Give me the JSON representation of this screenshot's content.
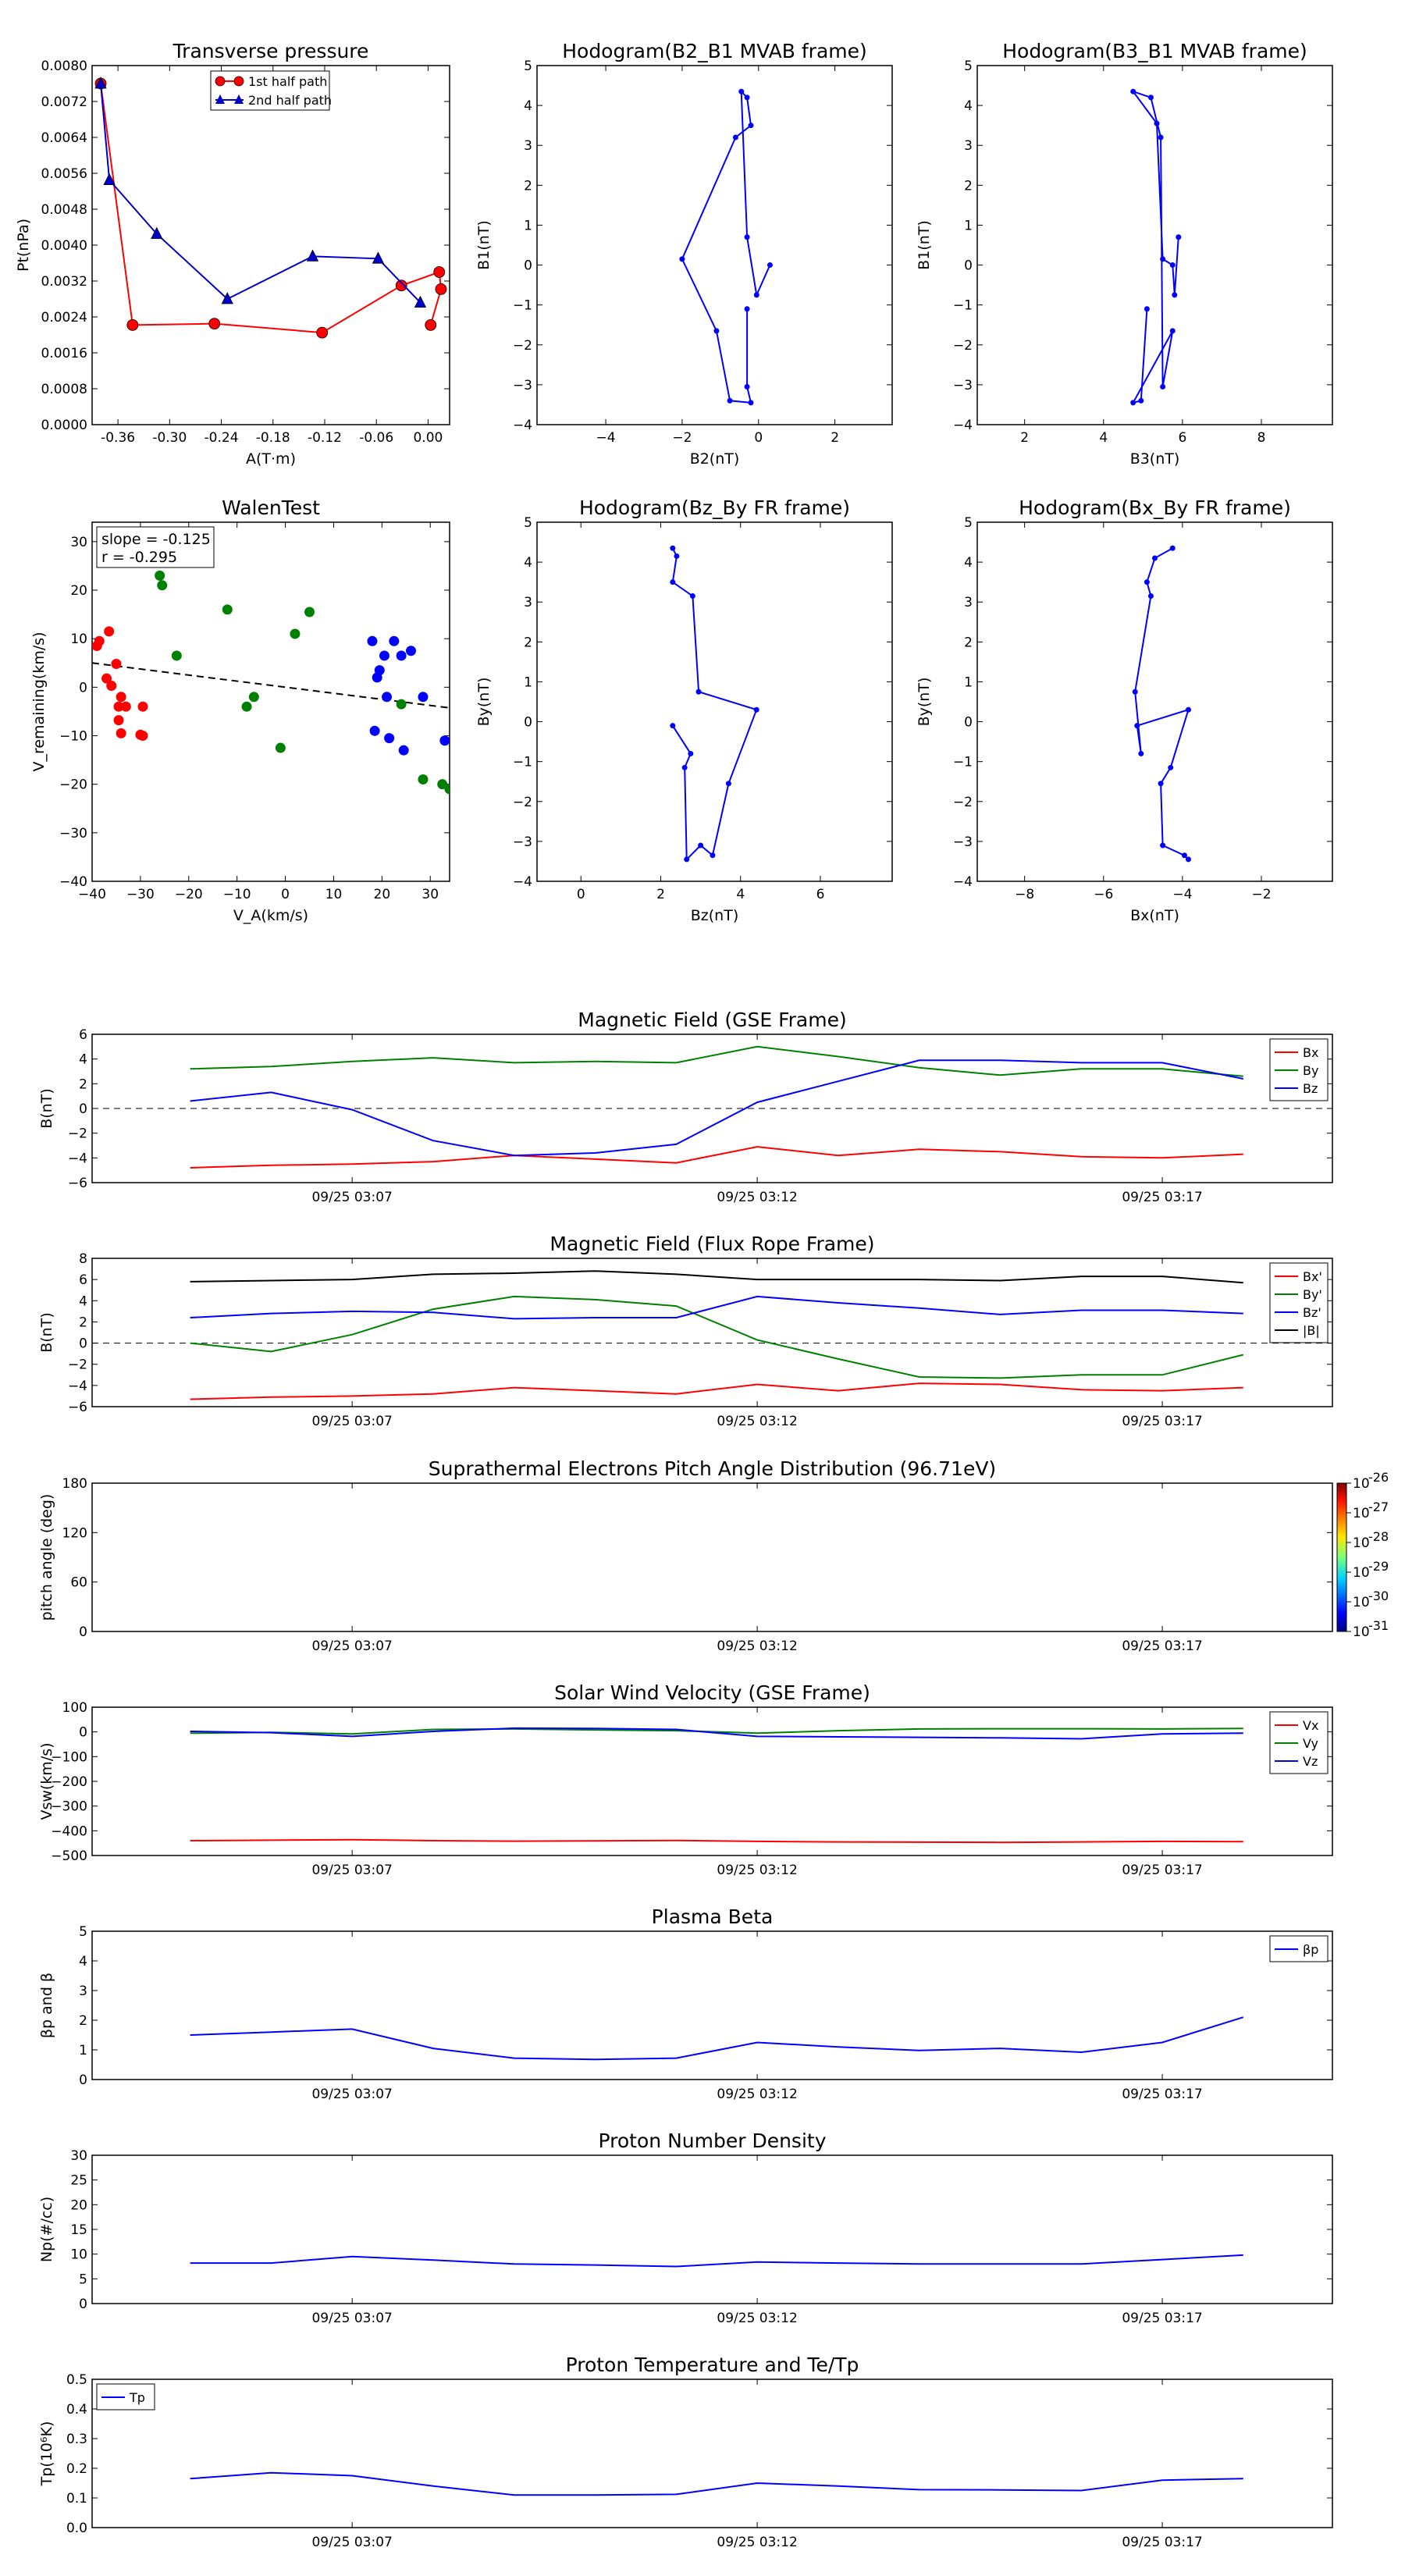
{
  "chart_data": [
    {
      "type": "line",
      "title": "Transverse pressure",
      "xlabel": "A(T·m)",
      "ylabel": "Pt(nPa)",
      "xlim": [
        -0.39,
        0.025
      ],
      "ylim": [
        0,
        0.008
      ],
      "xticks": [
        "-0.36",
        "-0.30",
        "-0.24",
        "-0.18",
        "-0.12",
        "-0.06",
        "0.00"
      ],
      "yticks": [
        "0.0000",
        "0.0008",
        "0.0016",
        "0.0024",
        "0.0032",
        "0.0040",
        "0.0048",
        "0.0056",
        "0.0064",
        "0.0072",
        "0.0080"
      ],
      "legend_position": "top-center",
      "series": [
        {
          "name": "1st half path",
          "color": "#ff0000",
          "marker": "circle",
          "x": [
            -0.38,
            -0.343,
            -0.248,
            -0.123,
            -0.031,
            0.013,
            0.015,
            0.003
          ],
          "y": [
            0.0076,
            0.00222,
            0.00225,
            0.00205,
            0.0031,
            0.0034,
            0.00302,
            0.00222
          ]
        },
        {
          "name": "2nd half path",
          "color": "#0000cc",
          "marker": "triangle",
          "x": [
            -0.38,
            -0.37,
            -0.315,
            -0.233,
            -0.134,
            -0.058,
            -0.009
          ],
          "y": [
            0.0076,
            0.00545,
            0.00425,
            0.0028,
            0.00375,
            0.0037,
            0.00272
          ]
        }
      ]
    },
    {
      "type": "line",
      "title": "Hodogram(B2_B1 MVAB frame)",
      "xlabel": "B2(nT)",
      "ylabel": "B1(nT)",
      "xlim": [
        -5.8,
        3.5
      ],
      "ylim": [
        -4,
        5
      ],
      "xticks": [
        "−4",
        "−2",
        "0",
        "2"
      ],
      "yticks": [
        "−4",
        "−3",
        "−2",
        "−1",
        "0",
        "1",
        "2",
        "3",
        "4",
        "5"
      ],
      "series": [
        {
          "color": "#0000ff",
          "marker": "dot",
          "x": [
            0.3,
            -0.05,
            -0.3,
            -0.45,
            -0.3,
            -0.2,
            -0.6,
            -2.0,
            -1.1,
            -0.75,
            -0.2,
            -0.3,
            -0.3
          ],
          "y": [
            0.0,
            -0.75,
            0.7,
            4.35,
            4.2,
            3.5,
            3.2,
            0.15,
            -1.65,
            -3.4,
            -3.45,
            -3.05,
            -1.1
          ]
        }
      ]
    },
    {
      "type": "line",
      "title": "Hodogram(B3_B1 MVAB frame)",
      "xlabel": "B3(nT)",
      "ylabel": "B1(nT)",
      "xlim": [
        0.8,
        9.8
      ],
      "ylim": [
        -4,
        5
      ],
      "xticks": [
        "2",
        "4",
        "6",
        "8"
      ],
      "yticks": [
        "−4",
        "−3",
        "−2",
        "−1",
        "0",
        "1",
        "2",
        "3",
        "4",
        "5"
      ],
      "series": [
        {
          "color": "#0000ff",
          "marker": "dot",
          "x": [
            5.9,
            5.8,
            5.75,
            5.5,
            5.35,
            4.75,
            5.2,
            5.45,
            5.5,
            5.75,
            4.75,
            4.95,
            5.1
          ],
          "y": [
            0.7,
            -0.75,
            0.0,
            0.15,
            3.55,
            4.35,
            4.2,
            3.2,
            -3.05,
            -1.65,
            -3.45,
            -3.4,
            -1.1
          ]
        }
      ]
    },
    {
      "type": "scatter",
      "title": "WalenTest",
      "xlabel": "V_A(km/s)",
      "ylabel": "V_remaining(km/s)",
      "xlim": [
        -40,
        34
      ],
      "ylim": [
        -40,
        34
      ],
      "xticks": [
        "−40",
        "−30",
        "−20",
        "−10",
        "0",
        "10",
        "20",
        "30"
      ],
      "yticks": [
        "−40",
        "−30",
        "−20",
        "−10",
        "0",
        "10",
        "20",
        "30"
      ],
      "annotation": [
        "slope = -0.125",
        "r = -0.295"
      ],
      "fit_line": {
        "x": [
          -40,
          34
        ],
        "y": [
          5.0,
          -4.25
        ]
      },
      "series": [
        {
          "color": "#ff0000",
          "x": [
            -39,
            -38.5,
            -37,
            -36.5,
            -36,
            -35,
            -34.5,
            -34,
            -34.5,
            -34,
            -33,
            -30,
            -29.5,
            -29.5
          ],
          "y": [
            8.5,
            9.5,
            1.8,
            11.5,
            0.3,
            4.8,
            -6.8,
            -9.5,
            -4,
            -2,
            -4,
            -9.8,
            -10,
            -4
          ]
        },
        {
          "color": "#008000",
          "x": [
            -26,
            -25.5,
            -22.5,
            -12,
            -8,
            -6.5,
            -1,
            2,
            5,
            24,
            28.5,
            32.5,
            34
          ],
          "y": [
            23,
            21,
            6.5,
            16,
            -4,
            -2,
            -12.5,
            11,
            15.5,
            -3.5,
            -19,
            -20,
            -21
          ]
        },
        {
          "color": "#0000ff",
          "x": [
            18,
            18.5,
            19,
            19.5,
            20.5,
            21,
            21.5,
            22.5,
            24,
            24.5,
            26,
            28.5,
            33
          ],
          "y": [
            9.5,
            -9,
            2,
            3.5,
            6.5,
            -2,
            -10.5,
            9.5,
            6.5,
            -13,
            7.5,
            -2,
            -11
          ]
        }
      ]
    },
    {
      "type": "line",
      "title": "Hodogram(Bz_By FR frame)",
      "xlabel": "Bz(nT)",
      "ylabel": "By(nT)",
      "xlim": [
        -1.1,
        7.8
      ],
      "ylim": [
        -4,
        5
      ],
      "xticks": [
        "0",
        "2",
        "4",
        "6"
      ],
      "yticks": [
        "−4",
        "−3",
        "−2",
        "−1",
        "0",
        "1",
        "2",
        "3",
        "4",
        "5"
      ],
      "series": [
        {
          "color": "#0000ff",
          "marker": "dot",
          "x": [
            2.3,
            2.4,
            2.3,
            2.8,
            2.95,
            4.4,
            3.7,
            3.3,
            3.0,
            2.65,
            2.6,
            2.75,
            2.3
          ],
          "y": [
            4.35,
            4.15,
            3.5,
            3.15,
            0.75,
            0.3,
            -1.55,
            -3.35,
            -3.1,
            -3.45,
            -1.15,
            -0.8,
            -0.1
          ]
        }
      ]
    },
    {
      "type": "line",
      "title": "Hodogram(Bx_By FR frame)",
      "xlabel": "Bx(nT)",
      "ylabel": "By(nT)",
      "xlim": [
        -9.2,
        -0.2
      ],
      "ylim": [
        -4,
        5
      ],
      "xticks": [
        "−8",
        "−6",
        "−4",
        "−2"
      ],
      "yticks": [
        "−4",
        "−3",
        "−2",
        "−1",
        "0",
        "1",
        "2",
        "3",
        "4",
        "5"
      ],
      "series": [
        {
          "color": "#0000ff",
          "marker": "dot",
          "x": [
            -4.25,
            -4.7,
            -4.9,
            -4.8,
            -5.2,
            -5.05,
            -5.15,
            -3.85,
            -4.3,
            -4.55,
            -4.5,
            -3.95,
            -3.85
          ],
          "y": [
            4.35,
            4.1,
            3.5,
            3.15,
            0.75,
            -0.8,
            -0.1,
            0.3,
            -1.15,
            -1.55,
            -3.1,
            -3.35,
            -3.45
          ]
        }
      ]
    },
    {
      "type": "line",
      "title": "Magnetic Field (GSE Frame)",
      "ylabel": "B(nT)",
      "ylim": [
        -6,
        6
      ],
      "yticks": [
        "−6",
        "−4",
        "−2",
        "0",
        "2",
        "4",
        "6"
      ],
      "xticks": [
        "09/25 03:07",
        "09/25 03:12",
        "09/25 03:17"
      ],
      "hline": 0,
      "x": [
        0,
        2,
        4,
        6,
        8,
        10,
        12,
        14,
        16,
        18,
        20,
        22,
        24,
        26
      ],
      "series": [
        {
          "name": "Bx",
          "color": "#ff0000",
          "values": [
            -4.8,
            -4.6,
            -4.5,
            -4.3,
            -3.8,
            -4.1,
            -4.4,
            -3.1,
            -3.8,
            -3.3,
            -3.5,
            -3.9,
            -4.0,
            -3.7
          ]
        },
        {
          "name": "By",
          "color": "#008000",
          "values": [
            3.2,
            3.4,
            3.8,
            4.1,
            3.7,
            3.8,
            3.7,
            5.0,
            4.2,
            3.3,
            2.7,
            3.2,
            3.2,
            2.6
          ]
        },
        {
          "name": "Bz",
          "color": "#0000ff",
          "values": [
            0.6,
            1.3,
            -0.1,
            -2.6,
            -3.8,
            -3.6,
            -2.9,
            0.5,
            2.2,
            3.9,
            3.9,
            3.7,
            3.7,
            2.4
          ]
        }
      ]
    },
    {
      "type": "line",
      "title": "Magnetic Field (Flux Rope Frame)",
      "ylabel": "B(nT)",
      "ylim": [
        -6,
        8
      ],
      "yticks": [
        "−6",
        "−4",
        "−2",
        "0",
        "2",
        "4",
        "6",
        "8"
      ],
      "xticks": [
        "09/25 03:07",
        "09/25 03:12",
        "09/25 03:17"
      ],
      "hline": 0,
      "x": [
        0,
        2,
        4,
        6,
        8,
        10,
        12,
        14,
        16,
        18,
        20,
        22,
        24,
        26
      ],
      "series": [
        {
          "name": "Bx'",
          "color": "#ff0000",
          "values": [
            -5.3,
            -5.1,
            -5.0,
            -4.8,
            -4.2,
            -4.5,
            -4.8,
            -3.9,
            -4.5,
            -3.8,
            -3.9,
            -4.4,
            -4.5,
            -4.2
          ]
        },
        {
          "name": "By'",
          "color": "#008000",
          "values": [
            0.0,
            -0.8,
            0.8,
            3.2,
            4.4,
            4.1,
            3.5,
            0.3,
            -1.5,
            -3.2,
            -3.3,
            -3.0,
            -3.0,
            -1.1
          ]
        },
        {
          "name": "Bz'",
          "color": "#0000ff",
          "values": [
            2.4,
            2.8,
            3.0,
            2.9,
            2.3,
            2.4,
            2.4,
            4.4,
            3.8,
            3.3,
            2.7,
            3.1,
            3.1,
            2.8
          ]
        },
        {
          "name": "|B|",
          "color": "#000000",
          "values": [
            5.8,
            5.9,
            6.0,
            6.5,
            6.6,
            6.8,
            6.5,
            6.0,
            6.0,
            6.0,
            5.9,
            6.3,
            6.3,
            5.7
          ]
        }
      ]
    },
    {
      "type": "heatmap",
      "title": "Suprathermal Electrons Pitch Angle Distribution (96.71eV)",
      "ylabel": "pitch angle (deg)",
      "ylim": [
        0,
        180
      ],
      "yticks": [
        "0",
        "60",
        "120",
        "180"
      ],
      "xticks": [
        "09/25 03:07",
        "09/25 03:12",
        "09/25 03:17"
      ],
      "colorbar_ticks": [
        "-31",
        "-30",
        "-29",
        "-28",
        "-27",
        "-26"
      ]
    },
    {
      "type": "line",
      "title": "Solar Wind Velocity (GSE Frame)",
      "ylabel": "Vsw(km/s)",
      "ylim": [
        -500,
        100
      ],
      "yticks": [
        "−500",
        "−400",
        "−300",
        "−200",
        "−100",
        "0",
        "100"
      ],
      "xticks": [
        "09/25 03:07",
        "09/25 03:12",
        "09/25 03:17"
      ],
      "x": [
        0,
        2,
        4,
        6,
        8,
        10,
        12,
        14,
        16,
        18,
        20,
        22,
        24,
        26
      ],
      "series": [
        {
          "name": "Vx",
          "color": "#ff0000",
          "values": [
            -440,
            -438,
            -436,
            -440,
            -442,
            -441,
            -439,
            -443,
            -445,
            -446,
            -447,
            -445,
            -443,
            -444
          ]
        },
        {
          "name": "Vy",
          "color": "#008000",
          "values": [
            -5,
            -2,
            -8,
            10,
            12,
            8,
            5,
            -5,
            5,
            12,
            13,
            13,
            12,
            14
          ]
        },
        {
          "name": "Vz",
          "color": "#0000ff",
          "values": [
            2,
            -3,
            -18,
            2,
            15,
            14,
            10,
            -18,
            -20,
            -22,
            -24,
            -28,
            -8,
            -5
          ]
        }
      ]
    },
    {
      "type": "line",
      "title": "Plasma Beta",
      "ylabel": "βp and β",
      "ylim": [
        0,
        5
      ],
      "yticks": [
        "0",
        "1",
        "2",
        "3",
        "4",
        "5"
      ],
      "xticks": [
        "09/25 03:07",
        "09/25 03:12",
        "09/25 03:17"
      ],
      "x": [
        0,
        2,
        4,
        6,
        8,
        10,
        12,
        14,
        16,
        18,
        20,
        22,
        24,
        26
      ],
      "series": [
        {
          "name": "βp",
          "color": "#0000ff",
          "values": [
            1.5,
            1.6,
            1.7,
            1.05,
            0.72,
            0.68,
            0.72,
            1.25,
            1.1,
            0.98,
            1.05,
            0.92,
            1.25,
            2.1
          ]
        }
      ]
    },
    {
      "type": "line",
      "title": "Proton Number Density",
      "ylabel": "Np(#/cc)",
      "ylim": [
        0,
        30
      ],
      "yticks": [
        "0",
        "5",
        "10",
        "15",
        "20",
        "25",
        "30"
      ],
      "xticks": [
        "09/25 03:07",
        "09/25 03:12",
        "09/25 03:17"
      ],
      "x": [
        0,
        2,
        4,
        6,
        8,
        10,
        12,
        14,
        16,
        18,
        20,
        22,
        24,
        26
      ],
      "series": [
        {
          "color": "#0000ff",
          "values": [
            8.2,
            8.2,
            9.5,
            8.8,
            8.0,
            7.8,
            7.5,
            8.4,
            8.2,
            8.0,
            8.0,
            8.0,
            8.9,
            9.8
          ]
        }
      ]
    },
    {
      "type": "line",
      "title": "Proton Temperature and Te/Tp",
      "ylabel": "Tp(10⁶K)",
      "ylim": [
        0,
        0.5
      ],
      "yticks": [
        "0.0",
        "0.1",
        "0.2",
        "0.3",
        "0.4",
        "0.5"
      ],
      "xticks": [
        "09/25 03:07",
        "09/25 03:12",
        "09/25 03:17"
      ],
      "x": [
        0,
        2,
        4,
        6,
        8,
        10,
        12,
        14,
        16,
        18,
        20,
        22,
        24,
        26
      ],
      "series": [
        {
          "name": "Tp",
          "color": "#0000ff",
          "values": [
            0.165,
            0.185,
            0.175,
            0.14,
            0.11,
            0.11,
            0.112,
            0.15,
            0.14,
            0.128,
            0.127,
            0.125,
            0.16,
            0.165
          ]
        }
      ]
    }
  ]
}
